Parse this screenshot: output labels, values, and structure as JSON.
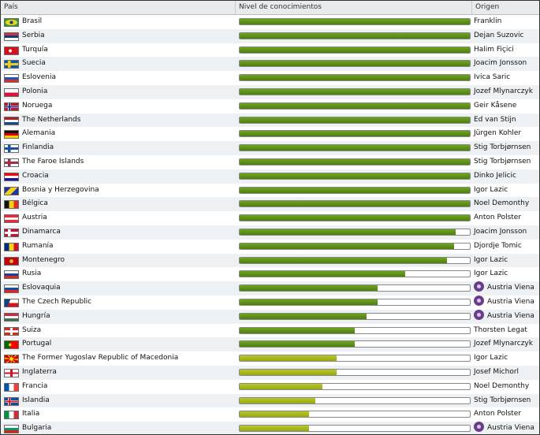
{
  "columns": {
    "country": "País",
    "knowledge": "Nivel de conocimientos",
    "origin": "Origen"
  },
  "rows": [
    {
      "country": "Brasil",
      "flag": "br",
      "level": 100,
      "origin": "Franklin",
      "club": false
    },
    {
      "country": "Serbia",
      "flag": "rs",
      "level": 100,
      "origin": "Dejan Suzovic",
      "club": false
    },
    {
      "country": "Turquía",
      "flag": "tr",
      "level": 100,
      "origin": "Halim Fiçici",
      "club": false
    },
    {
      "country": "Suecia",
      "flag": "se",
      "level": 100,
      "origin": "Joacim Jonsson",
      "club": false
    },
    {
      "country": "Eslovenia",
      "flag": "si",
      "level": 100,
      "origin": "Ivica Saric",
      "club": false
    },
    {
      "country": "Polonia",
      "flag": "pl",
      "level": 100,
      "origin": "Jozef Mlynarczyk",
      "club": false
    },
    {
      "country": "Noruega",
      "flag": "no",
      "level": 100,
      "origin": "Geir Kåsene",
      "club": false
    },
    {
      "country": "The Netherlands",
      "flag": "nl",
      "level": 100,
      "origin": "Ed van Stijn",
      "club": false
    },
    {
      "country": "Alemania",
      "flag": "de",
      "level": 100,
      "origin": "Jürgen Kohler",
      "club": false
    },
    {
      "country": "Finlandia",
      "flag": "fi",
      "level": 100,
      "origin": "Stig Torbjørnsen",
      "club": false
    },
    {
      "country": "The Faroe Islands",
      "flag": "fo",
      "level": 100,
      "origin": "Stig Torbjørnsen",
      "club": false
    },
    {
      "country": "Croacia",
      "flag": "hr",
      "level": 100,
      "origin": "Dinko Jelicic",
      "club": false
    },
    {
      "country": "Bosnia y Herzegovina",
      "flag": "ba",
      "level": 100,
      "origin": "Igor Lazic",
      "club": false
    },
    {
      "country": "Bélgica",
      "flag": "be",
      "level": 100,
      "origin": "Noel Demonthy",
      "club": false
    },
    {
      "country": "Austria",
      "flag": "at",
      "level": 100,
      "origin": "Anton Polster",
      "club": false
    },
    {
      "country": "Dinamarca",
      "flag": "dk",
      "level": 94,
      "origin": "Joacim Jonsson",
      "club": false
    },
    {
      "country": "Rumanía",
      "flag": "ro",
      "level": 93,
      "origin": "Djordje Tomic",
      "club": false
    },
    {
      "country": "Montenegro",
      "flag": "me",
      "level": 90,
      "origin": "Igor Lazic",
      "club": false
    },
    {
      "country": "Rusia",
      "flag": "ru",
      "level": 72,
      "origin": "Igor Lazic",
      "club": false
    },
    {
      "country": "Eslovaquia",
      "flag": "sk",
      "level": 60,
      "origin": "Austria Viena",
      "club": true
    },
    {
      "country": "The Czech Republic",
      "flag": "cz",
      "level": 60,
      "origin": "Austria Viena",
      "club": true
    },
    {
      "country": "Hungría",
      "flag": "hu",
      "level": 55,
      "origin": "Austria Viena",
      "club": true
    },
    {
      "country": "Suiza",
      "flag": "ch",
      "level": 50,
      "origin": "Thorsten Legat",
      "club": false
    },
    {
      "country": "Portugal",
      "flag": "pt",
      "level": 50,
      "origin": "Jozef Mlynarczyk",
      "club": false
    },
    {
      "country": "The Former Yugoslav Republic of Macedonia",
      "flag": "mk",
      "level": 42,
      "origin": "Igor Lazic",
      "club": false
    },
    {
      "country": "Inglaterra",
      "flag": "en",
      "level": 42,
      "origin": "Josef Michorl",
      "club": false
    },
    {
      "country": "Francia",
      "flag": "fr",
      "level": 36,
      "origin": "Noel Demonthy",
      "club": false
    },
    {
      "country": "Islandia",
      "flag": "is",
      "level": 33,
      "origin": "Stig Torbjørnsen",
      "club": false
    },
    {
      "country": "Italia",
      "flag": "it",
      "level": 30,
      "origin": "Anton Polster",
      "club": false
    },
    {
      "country": "Bulgaria",
      "flag": "bg",
      "level": 30,
      "origin": "Austria Viena",
      "club": true
    }
  ]
}
